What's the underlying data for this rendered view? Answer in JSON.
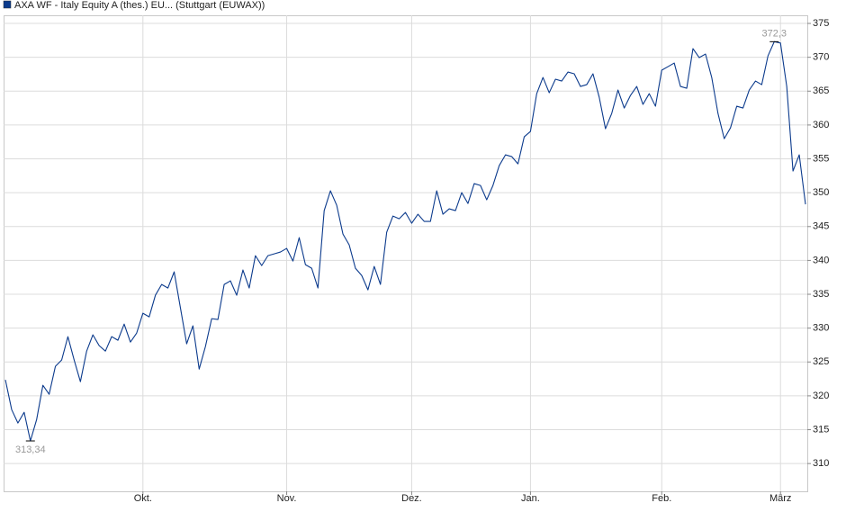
{
  "chart_data": {
    "type": "line",
    "series": [
      {
        "name": "AXA WF - Italy Equity A (thes.) EU... (Stuttgart (EUWAX))",
        "color": "#0b3a8c",
        "values": [
          322.36,
          317.97,
          315.98,
          317.57,
          313.34,
          316.51,
          321.56,
          320.23,
          324.35,
          325.28,
          328.74,
          325.28,
          322.09,
          326.61,
          329.01,
          327.41,
          326.61,
          328.74,
          328.21,
          330.6,
          327.94,
          329.27,
          332.2,
          331.66,
          334.86,
          336.45,
          335.92,
          338.31,
          332.99,
          327.68,
          330.34,
          323.95,
          327.28,
          331.4,
          331.27,
          336.45,
          336.98,
          334.86,
          338.58,
          335.92,
          340.7,
          339.24,
          340.7,
          340.97,
          341.24,
          341.77,
          339.91,
          343.36,
          339.37,
          338.84,
          335.92,
          347.35,
          350.28,
          348.15,
          343.89,
          342.3,
          338.84,
          337.78,
          335.65,
          339.11,
          336.45,
          344.16,
          346.55,
          346.15,
          347.08,
          345.49,
          346.82,
          345.76,
          345.76,
          350.28,
          346.82,
          347.62,
          347.35,
          350.01,
          348.41,
          351.34,
          351.07,
          348.95,
          351.07,
          354.0,
          355.59,
          355.33,
          354.26,
          358.25,
          359.05,
          364.63,
          367.02,
          364.76,
          366.76,
          366.49,
          367.82,
          367.56,
          365.69,
          365.96,
          367.56,
          364.1,
          359.45,
          361.71,
          365.16,
          362.5,
          364.37,
          365.69,
          363.04,
          364.63,
          362.77,
          368.09,
          368.62,
          369.15,
          365.69,
          365.43,
          371.28,
          369.95,
          370.48,
          367.02,
          361.71,
          357.98,
          359.58,
          362.77,
          362.5,
          365.16,
          366.49,
          365.96,
          370.21,
          372.3,
          372.1,
          365.69,
          353.2,
          355.59,
          348.28
        ]
      }
    ],
    "xlim": [
      0,
      128
    ],
    "xticks": [
      {
        "value": 22,
        "label": "Okt."
      },
      {
        "value": 45,
        "label": "Nov."
      },
      {
        "value": 65,
        "label": "Dez."
      },
      {
        "value": 84,
        "label": "Jan."
      },
      {
        "value": 105,
        "label": "Feb."
      },
      {
        "value": 124,
        "label": "März"
      }
    ],
    "ylim": [
      305.9,
      376.2
    ],
    "yticks": [
      310,
      315,
      320,
      325,
      330,
      335,
      340,
      345,
      350,
      355,
      360,
      365,
      370,
      375
    ],
    "grid": true,
    "annotations": [
      {
        "label": "313,34",
        "value": 313.34
      },
      {
        "label": "372,3",
        "value": 372.3
      }
    ]
  }
}
